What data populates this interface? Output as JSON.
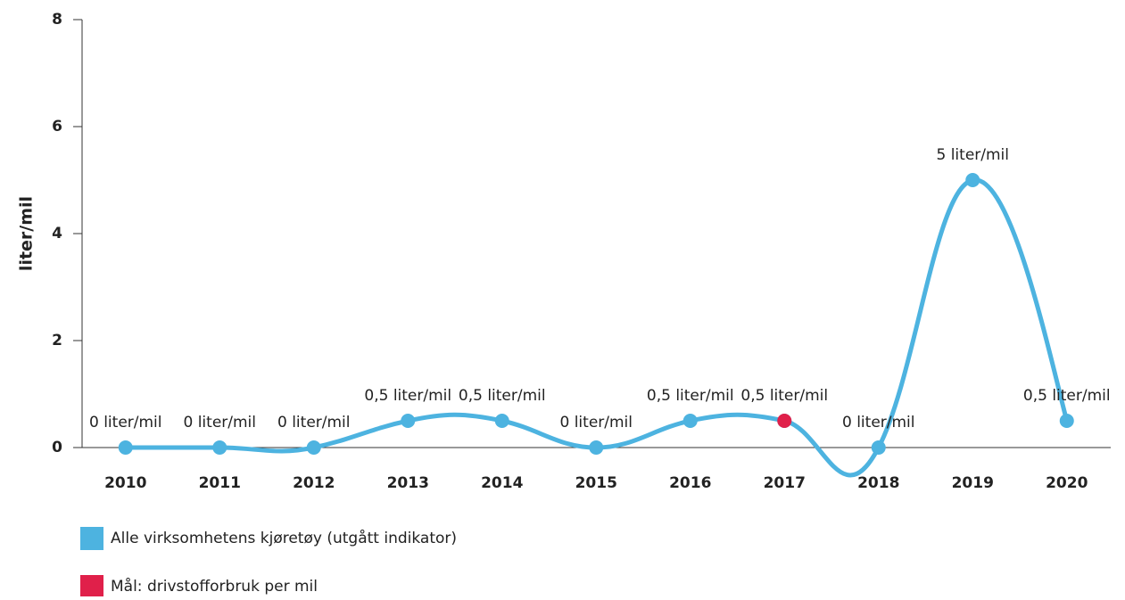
{
  "chart_data": {
    "type": "line",
    "ylabel": "liter/mil",
    "categories": [
      "2010",
      "2011",
      "2012",
      "2013",
      "2014",
      "2015",
      "2016",
      "2017",
      "2018",
      "2019",
      "2020"
    ],
    "series": [
      {
        "name": "Alle virksomhetens kjøretøy (utgått indikator)",
        "color": "#4db3e0",
        "values": [
          0,
          0,
          0,
          0.5,
          0.5,
          0,
          0.5,
          0.5,
          0,
          5,
          0.5
        ],
        "value_labels": [
          "0 liter/mil",
          "0 liter/mil",
          "0 liter/mil",
          "0,5 liter/mil",
          "0,5 liter/mil",
          "0 liter/mil",
          "0,5 liter/mil",
          "0,5 liter/mil",
          "0 liter/mil",
          "5 liter/mil",
          "0,5 liter/mil"
        ]
      },
      {
        "name": "Mål: drivstofforbruk per mil",
        "color": "#e0204a",
        "values": [
          null,
          null,
          null,
          null,
          null,
          null,
          null,
          0.5,
          null,
          null,
          null
        ]
      }
    ],
    "ylim": [
      0,
      8
    ],
    "yticks": [
      0,
      2,
      4,
      6,
      8
    ]
  }
}
